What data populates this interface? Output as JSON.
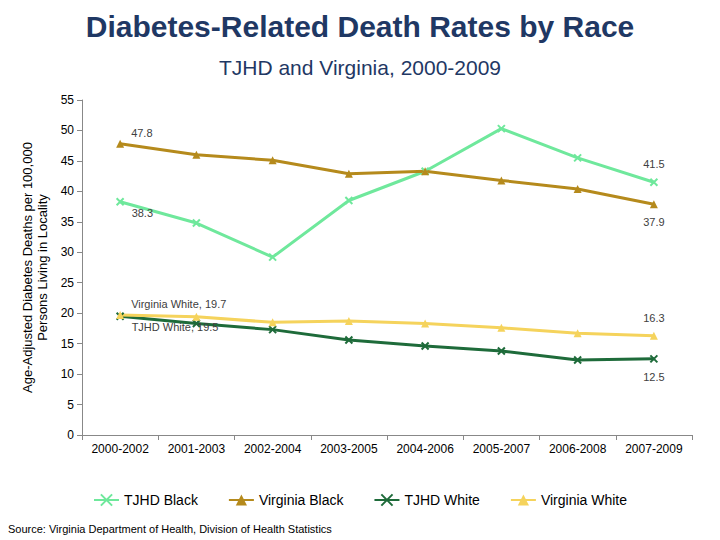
{
  "chart_data": {
    "type": "line",
    "title": "Diabetes-Related Death Rates by Race",
    "subtitle": "TJHD and Virginia, 2000-2009",
    "y_label": "Age-Adjusted Diabetes Deaths per 100,000\nPersons Living in Locality",
    "source": "Source: Virginia Department of Health, Division of Health Statistics",
    "categories": [
      "2000-2002",
      "2001-2003",
      "2002-2004",
      "2003-2005",
      "2004-2006",
      "2005-2007",
      "2006-2008",
      "2007-2009"
    ],
    "series": [
      {
        "name": "TJHD Black",
        "color": "#6fe89c",
        "marker": "x",
        "values": [
          38.3,
          34.8,
          29.2,
          38.5,
          43.3,
          50.3,
          45.5,
          41.5
        ]
      },
      {
        "name": "Virginia Black",
        "color": "#b58a1c",
        "marker": "triangle",
        "values": [
          47.8,
          46.0,
          45.1,
          42.9,
          43.3,
          41.8,
          40.4,
          37.9
        ]
      },
      {
        "name": "TJHD White",
        "color": "#1e6b3a",
        "marker": "x",
        "values": [
          19.5,
          18.3,
          17.3,
          15.6,
          14.6,
          13.8,
          12.3,
          12.5
        ]
      },
      {
        "name": "Virginia White",
        "color": "#f5d35c",
        "marker": "triangle",
        "values": [
          19.7,
          19.4,
          18.5,
          18.7,
          18.3,
          17.6,
          16.7,
          16.3
        ]
      }
    ],
    "annotations": [
      {
        "text": "38.3",
        "series": "TJHD Black",
        "category": "2000-2002"
      },
      {
        "text": "41.5",
        "series": "TJHD Black",
        "category": "2007-2009"
      },
      {
        "text": "47.8",
        "series": "Virginia Black",
        "category": "2000-2002"
      },
      {
        "text": "37.9",
        "series": "Virginia Black",
        "category": "2007-2009"
      },
      {
        "text": "TJHD White, 19.5",
        "series": "TJHD White",
        "category": "2000-2002"
      },
      {
        "text": "12.5",
        "series": "TJHD White",
        "category": "2007-2009"
      },
      {
        "text": "Virginia White, 19.7",
        "series": "Virginia White",
        "category": "2000-2002"
      },
      {
        "text": "16.3",
        "series": "Virginia White",
        "category": "2007-2009"
      }
    ],
    "ylim": [
      0,
      55
    ],
    "yticks": [
      0,
      5,
      10,
      15,
      20,
      25,
      30,
      35,
      40,
      45,
      50,
      55
    ],
    "grid": false,
    "legend": "bottom"
  }
}
